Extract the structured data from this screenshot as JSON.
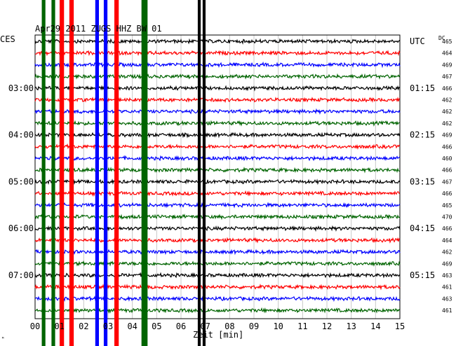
{
  "chart_data": {
    "type": "line",
    "title": "Apr29 2011   ZUGS HHZ BW 01",
    "left_axis_label": "CES",
    "right_axis_label": "UTC",
    "dc_header": "DC",
    "xlabel": "Zeit [min]",
    "xlim": [
      0,
      15
    ],
    "x_ticks": [
      "00",
      "01",
      "02",
      "03",
      "04",
      "05",
      "06",
      "07",
      "08",
      "09",
      "10",
      "11",
      "12",
      "13",
      "14",
      "15"
    ],
    "trace_count": 24,
    "minutes_per_trace": 15,
    "colors": [
      "#000000",
      "#ff0000",
      "#0000ff",
      "#006400"
    ],
    "left_time_labels": [
      {
        "trace": 4,
        "label": "03:00"
      },
      {
        "trace": 8,
        "label": "04:00"
      },
      {
        "trace": 12,
        "label": "05:00"
      },
      {
        "trace": 16,
        "label": "06:00"
      },
      {
        "trace": 20,
        "label": "07:00"
      }
    ],
    "right_time_labels": [
      {
        "trace": 0,
        "label": "UTC"
      },
      {
        "trace": 4,
        "label": "01:15"
      },
      {
        "trace": 8,
        "label": "02:15"
      },
      {
        "trace": 12,
        "label": "03:15"
      },
      {
        "trace": 16,
        "label": "04:15"
      },
      {
        "trace": 20,
        "label": "05:15"
      }
    ],
    "dc_values": [
      "465",
      "464",
      "469",
      "467",
      "466",
      "462",
      "462",
      "462",
      "469",
      "466",
      "460",
      "466",
      "467",
      "466",
      "465",
      "470",
      "466",
      "464",
      "462",
      "469",
      "463",
      "461",
      "463",
      "461"
    ],
    "event_bands": [
      {
        "minute": 0.35,
        "color": "#006400",
        "width_min": 0.15
      },
      {
        "minute": 0.75,
        "color": "#006400",
        "width_min": 0.15
      },
      {
        "minute": 1.1,
        "color": "#ff0000",
        "width_min": 0.18
      },
      {
        "minute": 1.5,
        "color": "#ff0000",
        "width_min": 0.18
      },
      {
        "minute": 2.55,
        "color": "#0000ff",
        "width_min": 0.15
      },
      {
        "minute": 2.9,
        "color": "#0000ff",
        "width_min": 0.15
      },
      {
        "minute": 3.35,
        "color": "#ff0000",
        "width_min": 0.18
      },
      {
        "minute": 4.5,
        "color": "#006400",
        "width_min": 0.25
      },
      {
        "minute": 6.75,
        "color": "#000000",
        "width_min": 0.12
      },
      {
        "minute": 6.95,
        "color": "#000000",
        "width_min": 0.12
      }
    ],
    "footer_mark": "ᴹ"
  }
}
